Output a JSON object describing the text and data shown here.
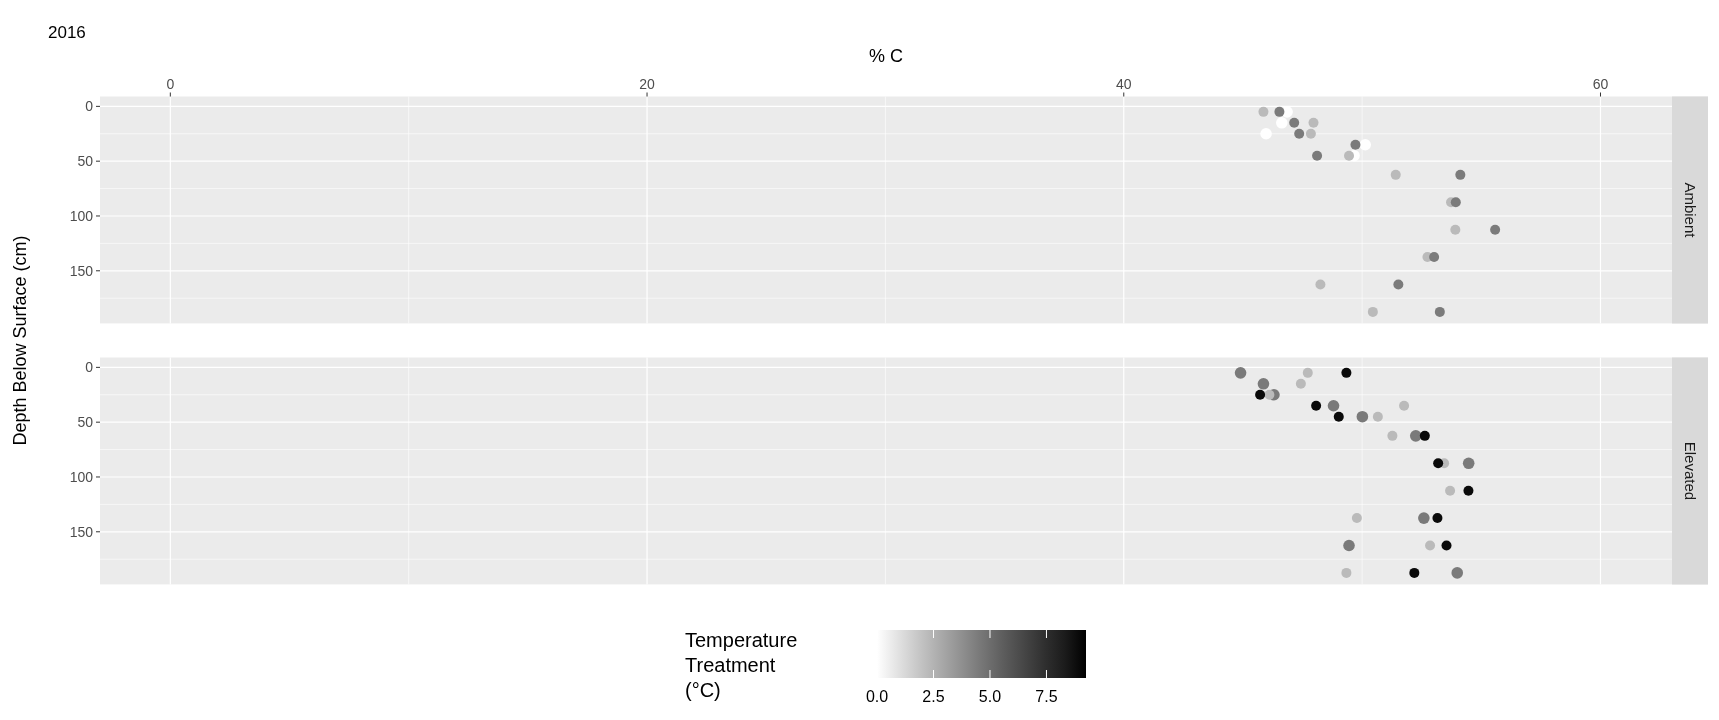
{
  "chart_data": [
    {
      "type": "scatter",
      "title": "2016",
      "annotations": [
        "Ambient"
      ],
      "xlabel": "% C",
      "ylabel": "Depth Below Surface (cm)",
      "xlim": [
        -2.95,
        63.0
      ],
      "xticks": [
        0,
        20,
        40,
        60
      ],
      "ylim": [
        198,
        -9
      ],
      "yticks": [
        0,
        50,
        100,
        150
      ],
      "grid": true,
      "marker": "circle",
      "series": [
        {
          "color": "#ffffff",
          "x": [
            46.85,
            46.63,
            45.97,
            50.13,
            49.66
          ],
          "values": [
            5,
            15,
            25,
            35,
            45
          ]
        },
        {
          "color": "#bababa",
          "x": [
            45.86,
            47.96,
            47.85,
            49.45,
            51.41,
            53.73,
            53.91,
            52.74,
            48.25,
            50.45
          ],
          "values": [
            5,
            15,
            25,
            45,
            62.5,
            87.5,
            112.5,
            137.5,
            162.5,
            187.5
          ]
        },
        {
          "color": "#7b7b7b",
          "x": [
            46.53,
            47.15,
            47.36,
            49.72,
            48.11,
            54.12,
            53.93,
            55.58,
            53.02,
            51.52,
            53.26
          ],
          "values": [
            5,
            15,
            25,
            35,
            45,
            62.5,
            87.5,
            112.5,
            137.5,
            162.5,
            187.5
          ]
        }
      ]
    },
    {
      "type": "scatter",
      "annotations": [
        "Elevated"
      ],
      "xlim": [
        -2.95,
        63.0
      ],
      "xticks": [
        0,
        20,
        40,
        60
      ],
      "ylim": [
        198,
        -9
      ],
      "yticks": [
        0,
        50,
        100,
        150
      ],
      "tick_labels": "y",
      "grid": true,
      "marker": "circle",
      "clabel": "Temperature\nTreatment\n(°C)",
      "clim": [
        0,
        9.25
      ],
      "cticks": [
        {
          "value": 0,
          "label": "0.0"
        },
        {
          "value": 2.5,
          "label": "2.5"
        },
        {
          "value": 5,
          "label": "5.0"
        },
        {
          "value": 7.5,
          "label": "7.5"
        }
      ],
      "series": [
        {
          "x": [
            46.3,
            48.8,
            50.01,
            52.25,
            54.47,
            52.59,
            49.45,
            53.99,
            44.9,
            45.86
          ],
          "values": [
            25,
            35,
            45,
            62.5,
            87.5,
            137.5,
            162.5,
            187.5,
            5,
            15
          ],
          "cvalues": [
            4.5,
            4.5,
            4.5,
            4.5,
            4.5,
            4.5,
            4.5,
            4.5,
            4.5,
            4.5
          ]
        },
        {
          "x": [
            47.72,
            47.43,
            46.11,
            51.76,
            50.66,
            51.27,
            53.44,
            53.69,
            49.78,
            52.85,
            49.34
          ],
          "values": [
            5,
            15,
            25,
            35,
            45,
            62.5,
            87.5,
            112.5,
            137.5,
            162.5,
            187.5
          ],
          "cvalues": [
            2.25,
            2.25,
            2.25,
            2.25,
            2.25,
            2.25,
            2.25,
            2.25,
            2.25,
            2.25,
            2.25
          ]
        },
        {
          "x": [
            49.34,
            45.72,
            48.07,
            49.02,
            52.63,
            53.19,
            54.46,
            53.16,
            53.54,
            52.19
          ],
          "values": [
            5,
            25,
            35,
            45,
            62.5,
            87.5,
            112.5,
            137.5,
            162.5,
            187.5
          ],
          "cvalues": [
            9,
            9,
            9,
            9,
            9,
            9,
            9,
            9,
            9,
            9
          ]
        }
      ]
    }
  ]
}
